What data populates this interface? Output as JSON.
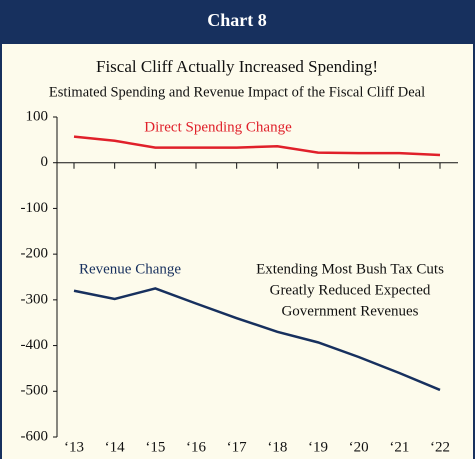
{
  "header": {
    "title": "Chart 8"
  },
  "chart_data": {
    "type": "line",
    "title": "Fiscal Cliff Actually Increased Spending!",
    "subtitle": "Estimated Spending and Revenue Impact of the Fiscal Cliff Deal",
    "categories": [
      "‘13",
      "‘14",
      "‘15",
      "‘16",
      "‘17",
      "‘18",
      "‘19",
      "‘20",
      "‘21",
      "‘22"
    ],
    "series": [
      {
        "name": "Direct Spending Change",
        "color": "#e0202a",
        "values": [
          57,
          48,
          33,
          33,
          33,
          36,
          22,
          21,
          21,
          17
        ]
      },
      {
        "name": "Revenue Change",
        "color": "#17305e",
        "values": [
          -280,
          -298,
          -275,
          -308,
          -340,
          -370,
          -393,
          -425,
          -460,
          -497
        ]
      }
    ],
    "annotations": [
      "Extending Most Bush Tax Cuts",
      "Greatly Reduced Expected",
      "Government Revenues"
    ],
    "ylim": [
      -600,
      100
    ],
    "yticks": [
      100,
      0,
      -100,
      -200,
      -300,
      -400,
      -500,
      -600
    ],
    "grid": false
  }
}
